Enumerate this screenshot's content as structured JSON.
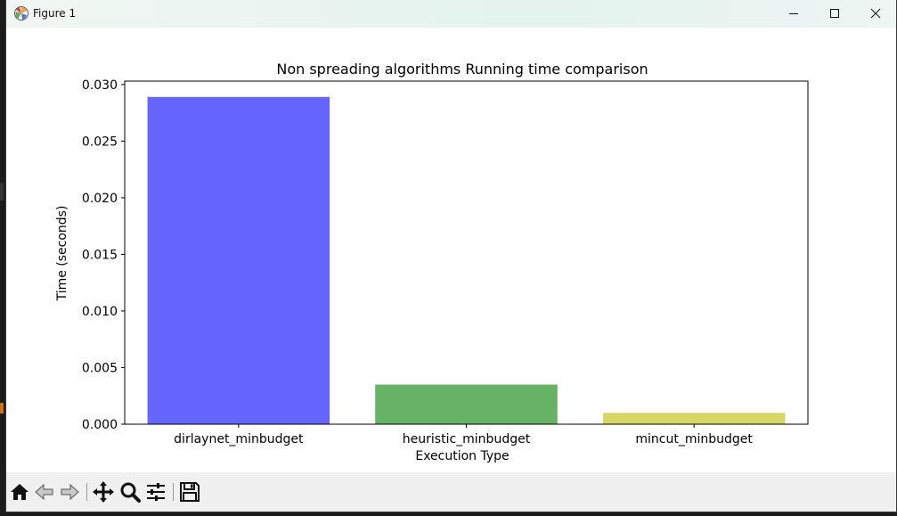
{
  "window": {
    "title": "Figure 1",
    "icon": "matplotlib-icon",
    "controls": [
      "minimize-icon",
      "maximize-icon",
      "close-icon"
    ]
  },
  "toolbar": {
    "buttons": [
      "home-icon",
      "back-arrow-icon",
      "forward-arrow-icon",
      "pan-icon",
      "zoom-icon",
      "configure-subplots-icon",
      "save-icon"
    ]
  },
  "chart_data": {
    "type": "bar",
    "title": "Non spreading algorithms Running time comparison",
    "xlabel": "Execution Type",
    "ylabel": "Time (seconds)",
    "categories": [
      "dirlaynet_minbudget",
      "heuristic_minbudget",
      "mincut_minbudget"
    ],
    "values": [
      0.0289,
      0.0035,
      0.001
    ],
    "colors": [
      "#6666ff",
      "#66b366",
      "#d6d666"
    ],
    "ylim": [
      0,
      0.0303
    ],
    "yticks": [
      0.0,
      0.005,
      0.01,
      0.015,
      0.02,
      0.025,
      0.03
    ],
    "ytick_labels": [
      "0.000",
      "0.005",
      "0.010",
      "0.015",
      "0.020",
      "0.025",
      "0.030"
    ],
    "grid": false,
    "legend": "none"
  }
}
